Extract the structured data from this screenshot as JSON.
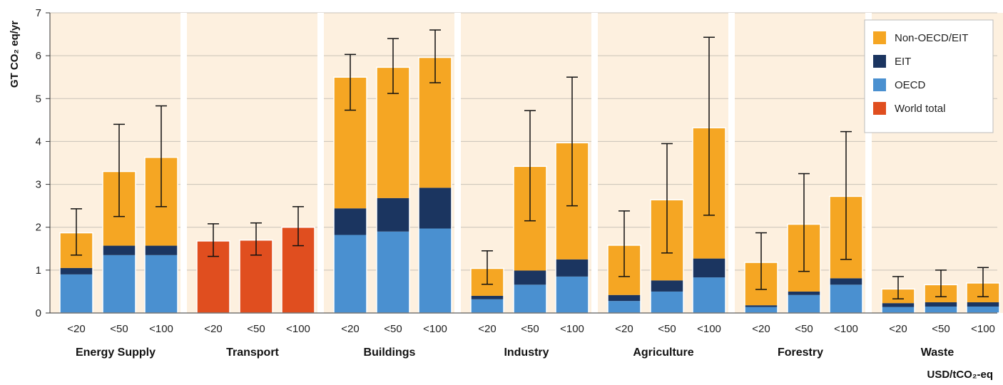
{
  "chart_data": {
    "type": "bar",
    "stacked": true,
    "ylabel": "GT CO₂ eq/yr",
    "xlabel": "USD/tCO₂-eq",
    "ylim": [
      0,
      7
    ],
    "yticks": [
      0,
      1,
      2,
      3,
      4,
      5,
      6,
      7
    ],
    "grid": true,
    "legend_position": "top-right",
    "colors": {
      "Non-OECD/EIT": "#f5a623",
      "EIT": "#1b3560",
      "OECD": "#4a90d0",
      "World total": "#e04e1f",
      "panel_bg": "#fdf0df",
      "grid": "#c9c2b8"
    },
    "legend": [
      "Non-OECD/EIT",
      "EIT",
      "OECD",
      "World total"
    ],
    "categories": [
      "<20",
      "<50",
      "<100"
    ],
    "groups": [
      {
        "name": "Energy Supply",
        "bars": [
          {
            "category": "<20",
            "OECD": 0.9,
            "EIT": 0.15,
            "Non-OECD/EIT": 0.82,
            "total": 1.87,
            "err_low": 1.35,
            "err_high": 2.43
          },
          {
            "category": "<50",
            "OECD": 1.35,
            "EIT": 0.22,
            "Non-OECD/EIT": 1.73,
            "total": 3.3,
            "err_low": 2.25,
            "err_high": 4.4
          },
          {
            "category": "<100",
            "OECD": 1.35,
            "EIT": 0.22,
            "Non-OECD/EIT": 2.06,
            "total": 3.63,
            "err_low": 2.48,
            "err_high": 4.83
          }
        ]
      },
      {
        "name": "Transport",
        "bars": [
          {
            "category": "<20",
            "World total": 1.68,
            "total": 1.68,
            "err_low": 1.32,
            "err_high": 2.08
          },
          {
            "category": "<50",
            "World total": 1.7,
            "total": 1.7,
            "err_low": 1.35,
            "err_high": 2.1
          },
          {
            "category": "<100",
            "World total": 2.0,
            "total": 2.0,
            "err_low": 1.57,
            "err_high": 2.48
          }
        ]
      },
      {
        "name": "Buildings",
        "bars": [
          {
            "category": "<20",
            "OECD": 1.82,
            "EIT": 0.62,
            "Non-OECD/EIT": 3.06,
            "total": 5.5,
            "err_low": 4.73,
            "err_high": 6.03
          },
          {
            "category": "<50",
            "OECD": 1.9,
            "EIT": 0.78,
            "Non-OECD/EIT": 3.05,
            "total": 5.73,
            "err_low": 5.12,
            "err_high": 6.4
          },
          {
            "category": "<100",
            "OECD": 1.97,
            "EIT": 0.95,
            "Non-OECD/EIT": 3.04,
            "total": 5.96,
            "err_low": 5.37,
            "err_high": 6.6
          }
        ]
      },
      {
        "name": "Industry",
        "bars": [
          {
            "category": "<20",
            "OECD": 0.32,
            "EIT": 0.08,
            "Non-OECD/EIT": 0.64,
            "total": 1.04,
            "err_low": 0.67,
            "err_high": 1.45
          },
          {
            "category": "<50",
            "OECD": 0.66,
            "EIT": 0.33,
            "Non-OECD/EIT": 2.43,
            "total": 3.42,
            "err_low": 2.15,
            "err_high": 4.72
          },
          {
            "category": "<100",
            "OECD": 0.85,
            "EIT": 0.4,
            "Non-OECD/EIT": 2.72,
            "total": 3.97,
            "err_low": 2.5,
            "err_high": 5.5
          }
        ]
      },
      {
        "name": "Agriculture",
        "bars": [
          {
            "category": "<20",
            "OECD": 0.28,
            "EIT": 0.14,
            "Non-OECD/EIT": 1.16,
            "total": 1.58,
            "err_low": 0.85,
            "err_high": 2.38
          },
          {
            "category": "<50",
            "OECD": 0.5,
            "EIT": 0.26,
            "Non-OECD/EIT": 1.88,
            "total": 2.64,
            "err_low": 1.4,
            "err_high": 3.95
          },
          {
            "category": "<100",
            "OECD": 0.83,
            "EIT": 0.44,
            "Non-OECD/EIT": 3.05,
            "total": 4.32,
            "err_low": 2.28,
            "err_high": 6.43
          }
        ]
      },
      {
        "name": "Forestry",
        "bars": [
          {
            "category": "<20",
            "OECD": 0.14,
            "EIT": 0.04,
            "Non-OECD/EIT": 1.0,
            "total": 1.18,
            "err_low": 0.55,
            "err_high": 1.87
          },
          {
            "category": "<50",
            "OECD": 0.42,
            "EIT": 0.08,
            "Non-OECD/EIT": 1.57,
            "total": 2.07,
            "err_low": 0.97,
            "err_high": 3.25
          },
          {
            "category": "<100",
            "OECD": 0.66,
            "EIT": 0.15,
            "Non-OECD/EIT": 1.91,
            "total": 2.72,
            "err_low": 1.25,
            "err_high": 4.23
          }
        ]
      },
      {
        "name": "Waste",
        "bars": [
          {
            "category": "<20",
            "OECD": 0.14,
            "EIT": 0.09,
            "Non-OECD/EIT": 0.33,
            "total": 0.56,
            "err_low": 0.33,
            "err_high": 0.85
          },
          {
            "category": "<50",
            "OECD": 0.15,
            "EIT": 0.1,
            "Non-OECD/EIT": 0.41,
            "total": 0.66,
            "err_low": 0.38,
            "err_high": 1.0
          },
          {
            "category": "<100",
            "OECD": 0.15,
            "EIT": 0.1,
            "Non-OECD/EIT": 0.45,
            "total": 0.7,
            "err_low": 0.38,
            "err_high": 1.06
          }
        ]
      }
    ]
  }
}
